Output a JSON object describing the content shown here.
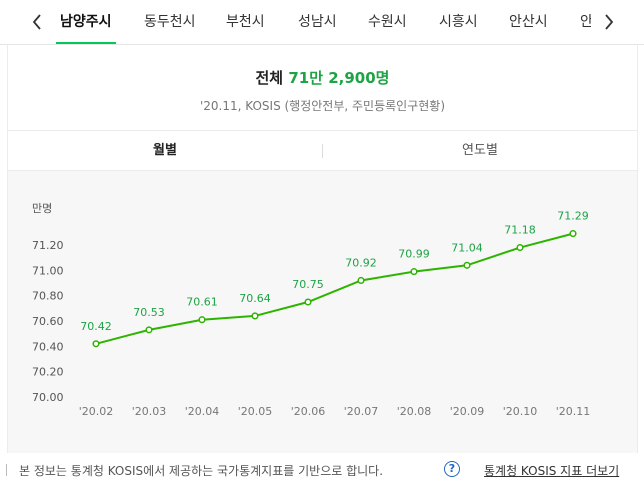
{
  "tabs": [
    "남양주시",
    "동두천시",
    "부천시",
    "성남시",
    "수원시",
    "시흥시",
    "안산시",
    "안"
  ],
  "active_tab": 0,
  "summary": {
    "label": "전체",
    "value": "71만 2,900명",
    "source": "'20.11, KOSIS (행정안전부, 주민등록인구현황)"
  },
  "toggle": {
    "monthly": "월별",
    "yearly": "연도별",
    "active": "monthly"
  },
  "colors": {
    "accent": "#03c75a",
    "line": "#2db400",
    "label": "#1ea345"
  },
  "chart_data": {
    "type": "line",
    "unit_label": "만명",
    "categories": [
      "'20.02",
      "'20.03",
      "'20.04",
      "'20.05",
      "'20.06",
      "'20.07",
      "'20.08",
      "'20.09",
      "'20.10",
      "'20.11"
    ],
    "values": [
      70.42,
      70.53,
      70.61,
      70.64,
      70.75,
      70.92,
      70.99,
      71.04,
      71.18,
      71.29
    ],
    "value_labels": [
      "70.42",
      "70.53",
      "70.61",
      "70.64",
      "70.75",
      "70.92",
      "70.99",
      "71.04",
      "71.18",
      "71.29"
    ],
    "y_ticks": [
      "71.20",
      "71.00",
      "70.80",
      "70.60",
      "70.40",
      "70.20",
      "70.00"
    ],
    "ylim": [
      70.0,
      71.2
    ],
    "grid": false
  },
  "footer": {
    "note": "본 정보는 통계청 KOSIS에서 제공하는 국가통계지표를 기반으로 합니다.",
    "help": "?",
    "more": "통계청 KOSIS 지표 더보기"
  }
}
